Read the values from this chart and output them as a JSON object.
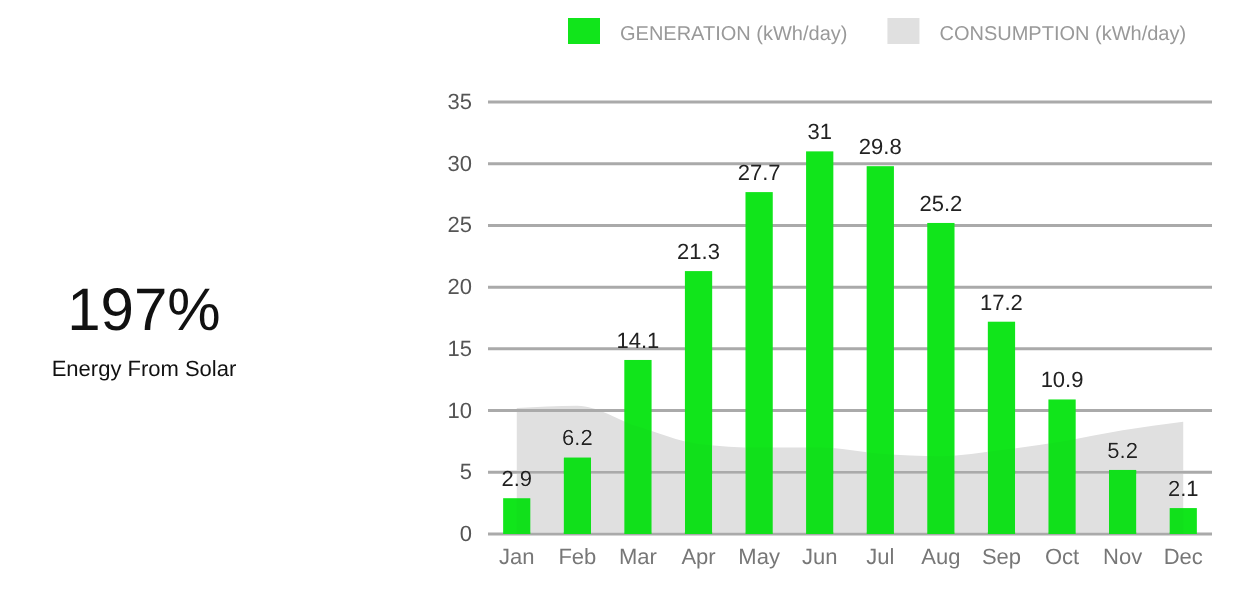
{
  "chart_data": {
    "type": "bar",
    "categories": [
      "Jan",
      "Feb",
      "Mar",
      "Apr",
      "May",
      "Jun",
      "Jul",
      "Aug",
      "Sep",
      "Oct",
      "Nov",
      "Dec"
    ],
    "series": [
      {
        "name": "GENERATION (kWh/day)",
        "color": "#11e51b",
        "values": [
          2.9,
          6.2,
          14.1,
          21.3,
          27.7,
          31,
          29.8,
          25.2,
          17.2,
          10.9,
          5.2,
          2.1
        ],
        "value_labels": [
          "2.9",
          "6.2",
          "14.1",
          "21.3",
          "27.7",
          "31",
          "29.8",
          "25.2",
          "17.2",
          "10.9",
          "5.2",
          "2.1"
        ]
      },
      {
        "name": "CONSUMPTION (kWh/day)",
        "type": "area",
        "color": "#e0e0e0",
        "values": [
          10.2,
          10.4,
          8.7,
          7.3,
          7.0,
          7.0,
          6.5,
          6.3,
          6.8,
          7.5,
          8.4,
          9.1
        ]
      }
    ],
    "ylim": [
      0,
      35
    ],
    "yticks": [
      0,
      5,
      10,
      15,
      20,
      25,
      30,
      35
    ],
    "grid": "y",
    "legend": "top",
    "annotations": [
      "197%",
      "Energy From Solar"
    ]
  }
}
